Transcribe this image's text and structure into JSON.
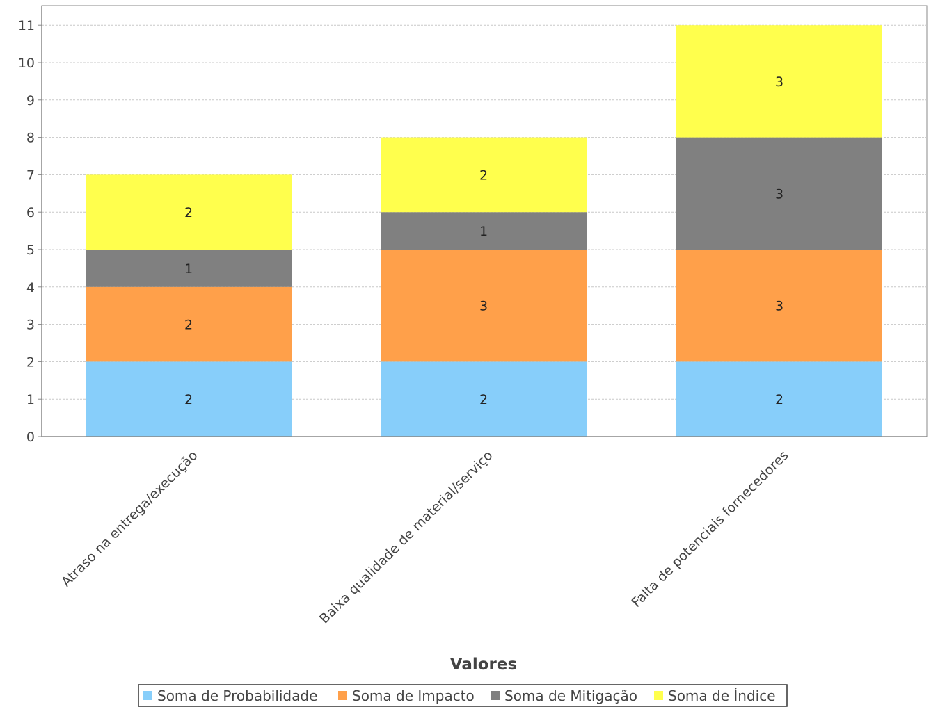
{
  "chart_data": {
    "type": "bar",
    "stacked": true,
    "xlabel": "Valores",
    "ylabel": "",
    "ylim": [
      0,
      11
    ],
    "yticks": [
      0,
      1,
      2,
      3,
      4,
      5,
      6,
      7,
      8,
      9,
      10,
      11
    ],
    "grid": true,
    "legend_position": "bottom",
    "categories": [
      "Atraso na entrega/execução",
      "Baixa qualidade de material/serviço",
      "Falta de potenciais fornecedores"
    ],
    "series": [
      {
        "name": "Soma de Probabilidade",
        "color": "#87cefa",
        "values": [
          2,
          2,
          2
        ]
      },
      {
        "name": "Soma de Impacto",
        "color": "#ffa04a",
        "values": [
          2,
          3,
          3
        ]
      },
      {
        "name": "Soma de Mitigação",
        "color": "#808080",
        "values": [
          1,
          1,
          3
        ]
      },
      {
        "name": "Soma de Índice",
        "color": "#ffff4d",
        "values": [
          2,
          2,
          3
        ]
      }
    ]
  }
}
